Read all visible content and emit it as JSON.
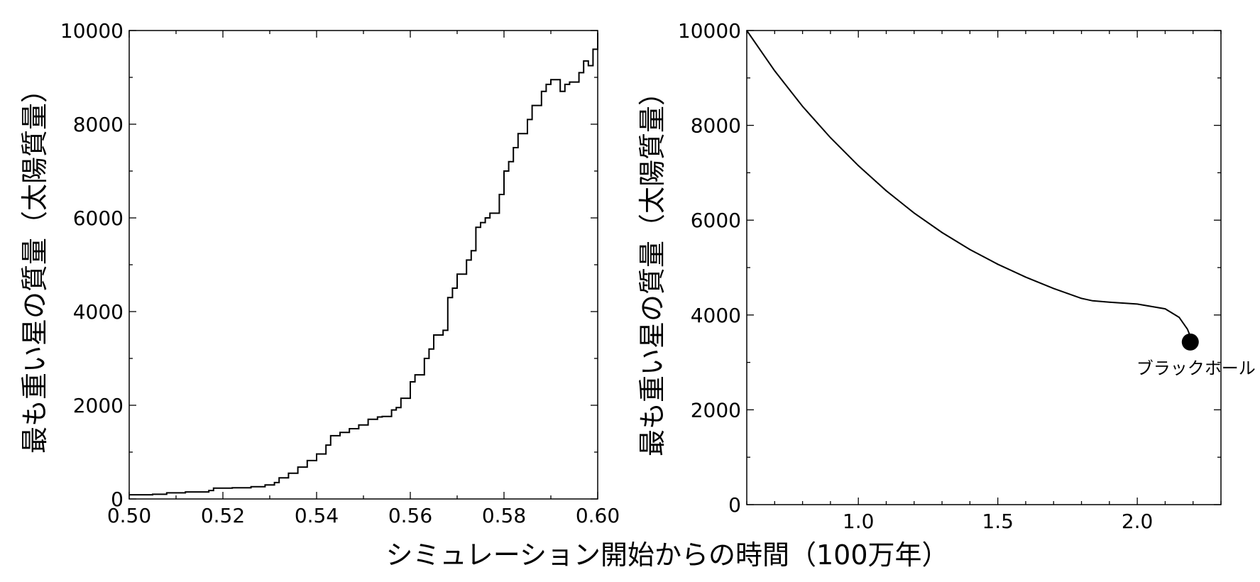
{
  "shared_xlabel": "シミュレーション開始からの時間（100万年）",
  "chart_data": [
    {
      "type": "line",
      "ylabel": "最も重い星の質量（太陽質量）",
      "xlim": [
        0.5,
        0.6
      ],
      "ylim": [
        0,
        10000
      ],
      "xticks": [
        "0.50",
        "0.52",
        "0.54",
        "0.56",
        "0.58",
        "0.60"
      ],
      "yticks": [
        "0",
        "2000",
        "4000",
        "6000",
        "8000",
        "10000"
      ],
      "grid": false,
      "series": [
        {
          "x": [
            0.5,
            0.505,
            0.508,
            0.512,
            0.517,
            0.518,
            0.522,
            0.526,
            0.529,
            0.531,
            0.532,
            0.534,
            0.536,
            0.538,
            0.54,
            0.542,
            0.543,
            0.545,
            0.547,
            0.549,
            0.551,
            0.553,
            0.554,
            0.556,
            0.557,
            0.558,
            0.56,
            0.561,
            0.563,
            0.564,
            0.565,
            0.567,
            0.568,
            0.569,
            0.57,
            0.572,
            0.573,
            0.574,
            0.575,
            0.576,
            0.577,
            0.579,
            0.58,
            0.581,
            0.582,
            0.583,
            0.585,
            0.586,
            0.588,
            0.589,
            0.59,
            0.592,
            0.593,
            0.594,
            0.596,
            0.597,
            0.598,
            0.599,
            0.6
          ],
          "y": [
            90,
            100,
            130,
            150,
            180,
            230,
            240,
            260,
            300,
            350,
            450,
            550,
            680,
            820,
            960,
            1150,
            1350,
            1420,
            1500,
            1580,
            1700,
            1750,
            1760,
            1900,
            1950,
            2150,
            2500,
            2650,
            3000,
            3200,
            3500,
            3600,
            4300,
            4500,
            4800,
            5100,
            5300,
            5800,
            5900,
            6000,
            6100,
            6500,
            7000,
            7200,
            7500,
            7800,
            8100,
            8400,
            8700,
            8850,
            8950,
            8700,
            8850,
            8900,
            9100,
            9350,
            9250,
            9600,
            9950
          ]
        }
      ]
    },
    {
      "type": "line",
      "ylabel": "最も重い星の質量（太陽質量）",
      "xlim": [
        0.6,
        2.3
      ],
      "ylim": [
        0,
        10000
      ],
      "xticks": [
        "1.0",
        "1.5",
        "2.0"
      ],
      "yticks": [
        "0",
        "2000",
        "4000",
        "6000",
        "8000",
        "10000"
      ],
      "grid": false,
      "series": [
        {
          "x": [
            0.6,
            0.7,
            0.8,
            0.9,
            1.0,
            1.1,
            1.2,
            1.3,
            1.4,
            1.5,
            1.6,
            1.7,
            1.8,
            1.84,
            1.9,
            2.0,
            2.1,
            2.15,
            2.18,
            2.19
          ],
          "y": [
            10000,
            9150,
            8400,
            7740,
            7150,
            6620,
            6150,
            5740,
            5380,
            5070,
            4800,
            4560,
            4350,
            4300,
            4270,
            4230,
            4130,
            3950,
            3700,
            3550
          ]
        }
      ],
      "marker": {
        "x": 2.19,
        "y": 3430,
        "label": "ブラックホール"
      }
    }
  ]
}
